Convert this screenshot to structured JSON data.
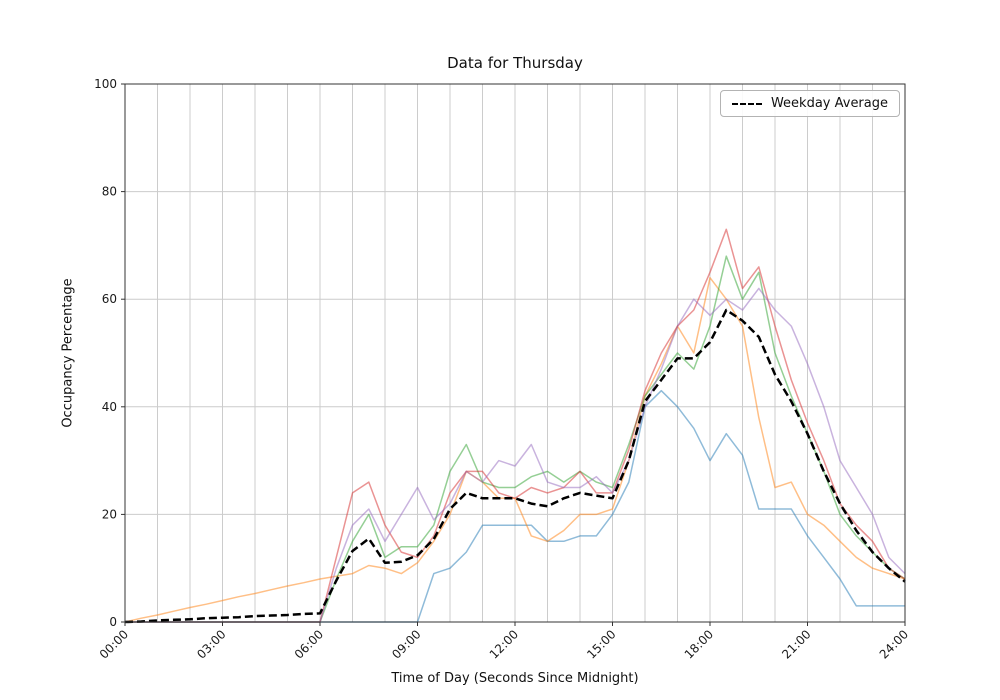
{
  "chart_data": {
    "type": "line",
    "title": "Data for Thursday",
    "xlabel": "Time of Day (Seconds Since Midnight)",
    "ylabel": "Occupancy Percentage",
    "xlim": [
      0,
      24
    ],
    "ylim": [
      0,
      100
    ],
    "x_tick_hours": [
      0,
      3,
      6,
      9,
      12,
      15,
      18,
      21,
      24
    ],
    "x_tick_labels": [
      "00:00",
      "03:00",
      "06:00",
      "09:00",
      "12:00",
      "15:00",
      "18:00",
      "21:00",
      "24:00"
    ],
    "y_ticks": [
      0,
      20,
      40,
      60,
      80,
      100
    ],
    "grid": {
      "show": true,
      "x_minor_step_hours": 1,
      "color": "#cccccc"
    },
    "legend": {
      "position": "upper-right",
      "entries": [
        {
          "label": "Weekday Average",
          "style": "dashed",
          "color": "#000000"
        }
      ]
    },
    "x_hours": [
      0,
      0.5,
      1,
      1.5,
      2,
      2.5,
      3,
      3.5,
      4,
      4.5,
      5,
      5.5,
      6,
      6.5,
      7,
      7.5,
      8,
      8.5,
      9,
      9.5,
      10,
      10.5,
      11,
      11.5,
      12,
      12.5,
      13,
      13.5,
      14,
      14.5,
      15,
      15.5,
      16,
      16.5,
      17,
      17.5,
      18,
      18.5,
      19,
      19.5,
      20,
      20.5,
      21,
      21.5,
      22,
      22.5,
      23,
      23.5,
      24
    ],
    "series": [
      {
        "name": "day-series-blue",
        "color": "#1f77b4",
        "alpha": 0.5,
        "width": 1.5,
        "dash": null,
        "values": [
          0,
          0,
          0,
          0,
          0,
          0,
          0,
          0,
          0,
          0,
          0,
          0,
          0,
          0,
          0,
          0,
          0,
          0,
          0,
          9,
          10,
          13,
          18,
          18,
          18,
          18,
          15,
          15,
          16,
          16,
          20,
          26,
          40,
          43,
          40,
          36,
          30,
          35,
          31,
          21,
          21,
          21,
          16,
          12,
          8,
          3,
          3,
          3,
          3
        ]
      },
      {
        "name": "day-series-orange",
        "color": "#ff7f0e",
        "alpha": 0.5,
        "width": 1.5,
        "dash": null,
        "values": [
          0,
          0.7,
          1.3,
          2,
          2.7,
          3.3,
          4,
          4.7,
          5.3,
          6,
          6.7,
          7.3,
          8,
          8.5,
          9,
          10.5,
          10,
          9,
          11,
          15,
          20,
          28,
          26,
          23,
          23,
          16,
          15,
          17,
          20,
          20,
          21,
          30,
          42,
          48,
          55,
          50,
          64,
          60,
          55,
          38,
          25,
          26,
          20,
          18,
          15,
          12,
          10,
          9,
          8
        ]
      },
      {
        "name": "day-series-green",
        "color": "#2ca02c",
        "alpha": 0.5,
        "width": 1.5,
        "dash": null,
        "values": [
          0,
          0,
          0,
          0,
          0,
          0,
          0,
          0,
          0,
          0,
          0,
          0,
          0,
          8,
          15,
          20,
          12,
          14,
          14,
          18,
          28,
          33,
          26,
          25,
          25,
          27,
          28,
          26,
          28,
          26,
          25,
          33,
          42,
          46,
          50,
          47,
          55,
          68,
          60,
          65,
          50,
          42,
          35,
          28,
          20,
          16,
          13,
          10,
          8
        ]
      },
      {
        "name": "day-series-red",
        "color": "#d62728",
        "alpha": 0.5,
        "width": 1.5,
        "dash": null,
        "values": [
          0,
          0,
          0,
          0,
          0,
          0,
          0,
          0,
          0,
          0,
          0,
          0,
          0,
          12,
          24,
          26,
          18,
          13,
          12,
          16,
          24,
          28,
          28,
          24,
          23,
          25,
          24,
          25,
          28,
          24,
          24,
          32,
          43,
          50,
          55,
          58,
          65,
          73,
          62,
          66,
          55,
          45,
          37,
          30,
          22,
          18,
          15,
          10,
          8
        ]
      },
      {
        "name": "day-series-purple",
        "color": "#9467bd",
        "alpha": 0.5,
        "width": 1.5,
        "dash": null,
        "values": [
          0,
          0,
          0,
          0,
          0,
          0,
          0,
          0,
          0,
          0,
          0,
          0,
          0,
          10,
          18,
          21,
          15,
          20,
          25,
          19,
          22,
          28,
          26,
          30,
          29,
          33,
          26,
          25,
          25,
          27,
          24,
          30,
          40,
          47,
          55,
          60,
          57,
          60,
          58,
          62,
          58,
          55,
          48,
          40,
          30,
          25,
          20,
          12,
          9
        ]
      },
      {
        "name": "weekday-average",
        "color": "#000000",
        "alpha": 1,
        "width": 2.5,
        "dash": [
          8,
          4
        ],
        "values": [
          0,
          0.1,
          0.3,
          0.4,
          0.5,
          0.7,
          0.8,
          0.9,
          1.1,
          1.2,
          1.3,
          1.5,
          1.6,
          7.7,
          13.2,
          15.5,
          11,
          11.2,
          12.4,
          15.4,
          21,
          24,
          23,
          23,
          23,
          22,
          21.5,
          23,
          24,
          23.5,
          23,
          30,
          41,
          45,
          49,
          49,
          52,
          58,
          56,
          53,
          46,
          41,
          35,
          28,
          22,
          17,
          13,
          10,
          7.5
        ]
      }
    ]
  }
}
